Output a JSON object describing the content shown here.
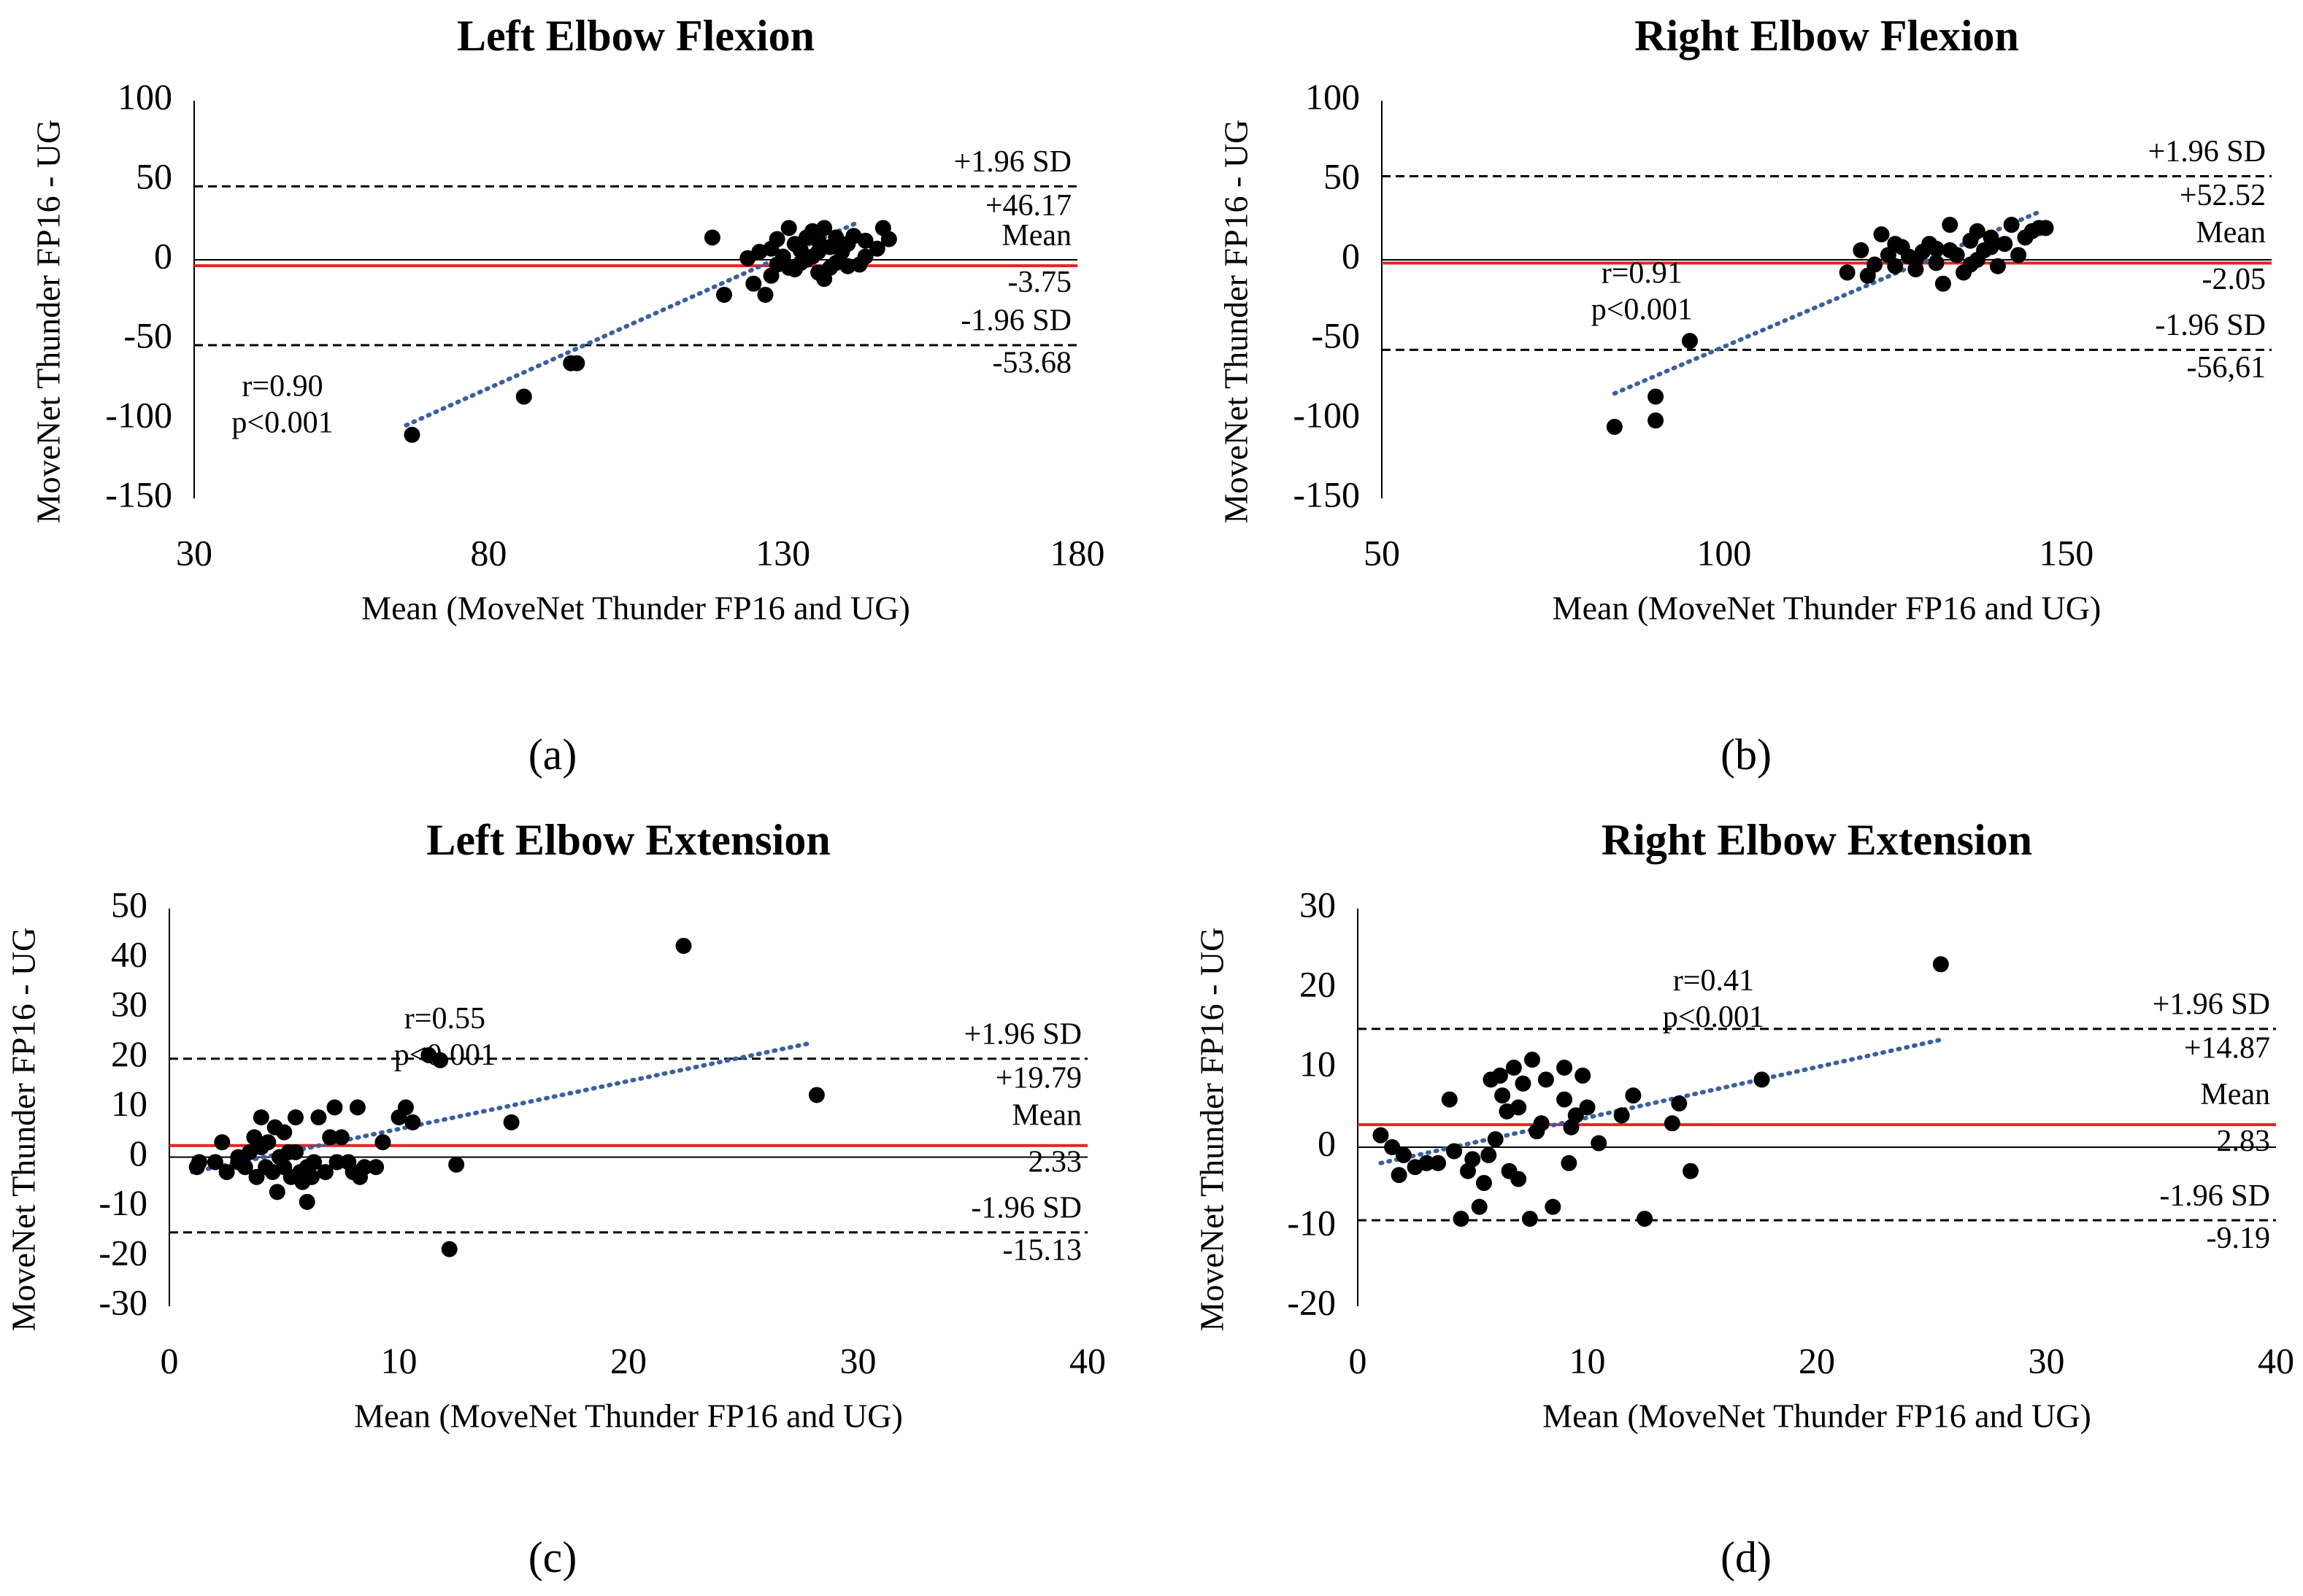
{
  "figure": {
    "panel_labels": [
      "(a)",
      "(b)",
      "(c)",
      "(d)"
    ]
  },
  "chart_data": [
    {
      "type": "scatter",
      "title": "Left Elbow Flexion",
      "xlabel": "Mean (MoveNet Thunder FP16 and UG)",
      "ylabel": "MoveNet Thunder FP16 - UG",
      "xlim": [
        30,
        180
      ],
      "ylim": [
        -150,
        100
      ],
      "xticks": [
        30,
        80,
        130,
        180
      ],
      "yticks": [
        -150,
        -100,
        -50,
        0,
        50,
        100
      ],
      "zero_line": true,
      "mean": -3.75,
      "upper_loa": 46.17,
      "lower_loa": -53.68,
      "labels": {
        "upper_sd": "+1.96 SD",
        "upper_val": "+46.17",
        "mean_label": "Mean",
        "mean_val": "-3.75",
        "lower_sd": "-1.96 SD",
        "lower_val": "-53.68",
        "r_text": "r=0.90",
        "p_text": "p<0.001"
      },
      "trendline": {
        "x": [
          66,
          143
        ],
        "y": [
          -104,
          24
        ]
      },
      "points": [
        [
          67,
          -110
        ],
        [
          86,
          -86
        ],
        [
          94,
          -65
        ],
        [
          95,
          -65
        ],
        [
          118,
          14
        ],
        [
          120,
          -22
        ],
        [
          124,
          1
        ],
        [
          125,
          -15
        ],
        [
          126,
          5
        ],
        [
          127,
          -22
        ],
        [
          128,
          -10
        ],
        [
          129,
          -3
        ],
        [
          129,
          13
        ],
        [
          130,
          2
        ],
        [
          131,
          -5
        ],
        [
          131,
          20
        ],
        [
          132,
          10
        ],
        [
          133,
          -2
        ],
        [
          133,
          6
        ],
        [
          134,
          14
        ],
        [
          135,
          2
        ],
        [
          135,
          18
        ],
        [
          136,
          -8
        ],
        [
          136,
          5
        ],
        [
          137,
          20
        ],
        [
          137,
          -12
        ],
        [
          138,
          8
        ],
        [
          139,
          -2
        ],
        [
          139,
          14
        ],
        [
          140,
          5
        ],
        [
          141,
          10
        ],
        [
          141,
          -4
        ],
        [
          142,
          15
        ],
        [
          143,
          -3
        ],
        [
          144,
          2
        ],
        [
          144,
          12
        ],
        [
          146,
          7
        ],
        [
          147,
          20
        ],
        [
          148,
          13
        ],
        [
          128,
          7
        ],
        [
          132,
          -6
        ],
        [
          134,
          0
        ],
        [
          136,
          12
        ],
        [
          138,
          -5
        ]
      ]
    },
    {
      "type": "scatter",
      "title": "Right Elbow Flexion",
      "xlabel": "Mean (MoveNet Thunder FP16 and UG)",
      "ylabel": "MoveNet Thunder FP16 - UG",
      "xlim": [
        50,
        180
      ],
      "ylim": [
        -150,
        100
      ],
      "xticks": [
        50,
        100,
        150
      ],
      "yticks": [
        -150,
        -100,
        -50,
        0,
        50,
        100
      ],
      "zero_line": true,
      "mean": -2.05,
      "upper_loa": 52.52,
      "lower_loa": -56.61,
      "labels": {
        "upper_sd": "+1.96 SD",
        "upper_val": "+52.52",
        "mean_label": "Mean",
        "mean_val": "-2.05",
        "lower_sd": "-1.96 SD",
        "lower_val": "-56,61",
        "r_text": "r=0.91",
        "p_text": "p<0.001"
      },
      "trendline": {
        "x": [
          84,
          146
        ],
        "y": [
          -84,
          30
        ]
      },
      "points": [
        [
          84,
          -105
        ],
        [
          90,
          -101
        ],
        [
          90,
          -86
        ],
        [
          95,
          -51
        ],
        [
          118,
          -8
        ],
        [
          120,
          6
        ],
        [
          121,
          -10
        ],
        [
          122,
          -3
        ],
        [
          123,
          16
        ],
        [
          124,
          3
        ],
        [
          125,
          -4
        ],
        [
          126,
          8
        ],
        [
          127,
          2
        ],
        [
          128,
          -6
        ],
        [
          129,
          5
        ],
        [
          130,
          10
        ],
        [
          131,
          -2
        ],
        [
          131,
          7
        ],
        [
          132,
          -15
        ],
        [
          133,
          22
        ],
        [
          134,
          3
        ],
        [
          135,
          -8
        ],
        [
          136,
          12
        ],
        [
          137,
          0
        ],
        [
          137,
          18
        ],
        [
          138,
          6
        ],
        [
          139,
          14
        ],
        [
          140,
          -4
        ],
        [
          141,
          10
        ],
        [
          142,
          22
        ],
        [
          143,
          3
        ],
        [
          144,
          14
        ],
        [
          145,
          18
        ],
        [
          146,
          20
        ],
        [
          147,
          20
        ],
        [
          125,
          10
        ],
        [
          128,
          0
        ],
        [
          133,
          6
        ],
        [
          136,
          -3
        ],
        [
          139,
          8
        ]
      ]
    },
    {
      "type": "scatter",
      "title": "Left Elbow Extension",
      "xlabel": "Mean (MoveNet Thunder FP16 and UG)",
      "ylabel": "MoveNet Thunder FP16 - UG",
      "xlim": [
        0,
        40
      ],
      "ylim": [
        -30,
        50
      ],
      "xticks": [
        0,
        10,
        20,
        30,
        40
      ],
      "yticks": [
        -30,
        -20,
        -10,
        0,
        10,
        20,
        30,
        40,
        50
      ],
      "zero_line": true,
      "mean": 2.33,
      "upper_loa": 19.79,
      "lower_loa": -15.13,
      "labels": {
        "upper_sd": "+1.96 SD",
        "upper_val": "+19.79",
        "mean_label": "Mean",
        "mean_val": "2.33",
        "lower_sd": "-1.96 SD",
        "lower_val": "-15.13",
        "r_text": "r=0.55",
        "p_text": "p<0.001"
      },
      "trendline": {
        "x": [
          1,
          28
        ],
        "y": [
          -3,
          23
        ]
      },
      "points": [
        [
          1.2,
          -2
        ],
        [
          1.3,
          -1
        ],
        [
          2,
          -1
        ],
        [
          2.3,
          3
        ],
        [
          2.5,
          -3
        ],
        [
          3,
          0
        ],
        [
          3.3,
          -2
        ],
        [
          3.5,
          1
        ],
        [
          3.7,
          4
        ],
        [
          3.8,
          -4
        ],
        [
          4,
          2
        ],
        [
          4,
          8
        ],
        [
          4.2,
          -2
        ],
        [
          4.3,
          3
        ],
        [
          4.5,
          -3
        ],
        [
          4.6,
          6
        ],
        [
          4.7,
          -7
        ],
        [
          4.8,
          0
        ],
        [
          5,
          5
        ],
        [
          5,
          -2
        ],
        [
          5.2,
          1
        ],
        [
          5.3,
          -4
        ],
        [
          5.5,
          8
        ],
        [
          5.7,
          -3
        ],
        [
          5.8,
          -5
        ],
        [
          6,
          -2
        ],
        [
          6,
          -9
        ],
        [
          6.2,
          -4
        ],
        [
          6.3,
          -1
        ],
        [
          6.5,
          8
        ],
        [
          6.8,
          -3
        ],
        [
          7,
          4
        ],
        [
          7.2,
          10
        ],
        [
          7.3,
          -1
        ],
        [
          7.5,
          4
        ],
        [
          8,
          -3
        ],
        [
          8.2,
          10
        ],
        [
          8.3,
          -4
        ],
        [
          8.5,
          -2
        ],
        [
          9,
          -2
        ],
        [
          9.3,
          3
        ],
        [
          10,
          8
        ],
        [
          10.3,
          10
        ],
        [
          10.6,
          7
        ],
        [
          11.3,
          20.5
        ],
        [
          11.8,
          19.5
        ],
        [
          12.2,
          -18.5
        ],
        [
          12.5,
          -1.5
        ],
        [
          14.9,
          7
        ],
        [
          22.4,
          42.5
        ],
        [
          28.2,
          12.5
        ],
        [
          3,
          -1
        ],
        [
          5.5,
          1
        ],
        [
          7.8,
          -1
        ]
      ]
    },
    {
      "type": "scatter",
      "title": "Right Elbow Extension",
      "xlabel": "Mean (MoveNet Thunder FP16 and UG)",
      "ylabel": "MoveNet Thunder FP16 - UG",
      "xlim": [
        0,
        40
      ],
      "ylim": [
        -20,
        30
      ],
      "xticks": [
        0,
        10,
        20,
        30,
        40
      ],
      "yticks": [
        -20,
        -10,
        0,
        10,
        20,
        30
      ],
      "zero_line": true,
      "mean": 2.83,
      "upper_loa": 14.87,
      "lower_loa": -9.19,
      "labels": {
        "upper_sd": "+1.96 SD",
        "upper_val": "+14.87",
        "mean_label": "Mean",
        "mean_val": "2.83",
        "lower_sd": "-1.96 SD",
        "lower_val": "-9.19",
        "r_text": "r=0.41",
        "p_text": "p<0.001"
      },
      "trendline": {
        "x": [
          1,
          25.4
        ],
        "y": [
          -2,
          13.5
        ]
      },
      "points": [
        [
          1,
          1.5
        ],
        [
          1.5,
          0
        ],
        [
          1.8,
          -3.5
        ],
        [
          2,
          -1
        ],
        [
          2.5,
          -2.5
        ],
        [
          3,
          -2
        ],
        [
          3.5,
          -2
        ],
        [
          4,
          6
        ],
        [
          4.2,
          -0.5
        ],
        [
          4.5,
          -9
        ],
        [
          4.8,
          -3
        ],
        [
          5,
          -1.5
        ],
        [
          5.3,
          -7.5
        ],
        [
          5.5,
          -4.5
        ],
        [
          5.7,
          -1
        ],
        [
          5.8,
          8.5
        ],
        [
          6,
          1
        ],
        [
          6.2,
          9
        ],
        [
          6.3,
          6.5
        ],
        [
          6.5,
          4.5
        ],
        [
          6.6,
          -3
        ],
        [
          6.8,
          10
        ],
        [
          7,
          -4
        ],
        [
          7,
          5
        ],
        [
          7.2,
          8
        ],
        [
          7.5,
          -9
        ],
        [
          7.6,
          11
        ],
        [
          7.8,
          2
        ],
        [
          8,
          3
        ],
        [
          8.2,
          8.5
        ],
        [
          8.5,
          -7.5
        ],
        [
          9,
          10
        ],
        [
          9,
          6
        ],
        [
          9.2,
          -2
        ],
        [
          9.3,
          2.5
        ],
        [
          9.5,
          4
        ],
        [
          9.8,
          9
        ],
        [
          10,
          5
        ],
        [
          10.5,
          0.5
        ],
        [
          11.5,
          4
        ],
        [
          12,
          6.5
        ],
        [
          12.5,
          -9
        ],
        [
          13.7,
          3
        ],
        [
          14,
          5.5
        ],
        [
          14.5,
          -3
        ],
        [
          17.6,
          8.5
        ],
        [
          25.4,
          23
        ]
      ]
    }
  ]
}
